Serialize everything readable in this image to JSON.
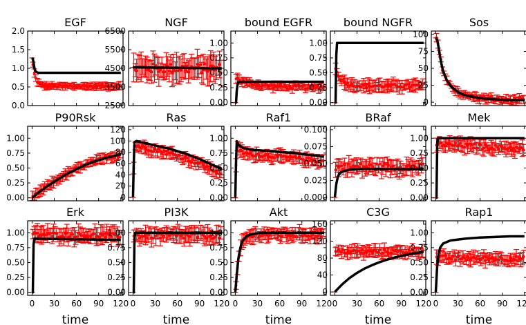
{
  "figure": {
    "description_free": true,
    "rows": 3,
    "cols": 5,
    "x_axis_label": "time",
    "x_ticks": [
      0,
      30,
      60,
      90,
      120
    ],
    "xlim": [
      -6,
      123
    ],
    "colors": {
      "data": "#ff0000",
      "fit": "#000000"
    }
  },
  "chart_data": [
    {
      "type": "line",
      "title": "EGF",
      "ylim": [
        0,
        2.0
      ],
      "yticks": [
        "0.0",
        "0.5",
        "1.0",
        "1.5",
        "2.0"
      ],
      "ytick_values": [
        0,
        0.5,
        1.0,
        1.5,
        2.0
      ],
      "fit_x": [
        0,
        1,
        2,
        3,
        4,
        6,
        8,
        10,
        120
      ],
      "fit_y": [
        1.28,
        1.25,
        1.15,
        1.02,
        0.94,
        0.9,
        0.88,
        0.88,
        0.88
      ],
      "data_shape": "decay",
      "data_start": 1.25,
      "data_end": 0.52,
      "data_tau": 4,
      "data_err": 0.08,
      "data_noise": 0.03
    },
    {
      "type": "line",
      "title": "NGF",
      "ylim": [
        2500,
        6500
      ],
      "yticks": [
        "2500",
        "3500",
        "4500",
        "5500",
        "6500"
      ],
      "ytick_values": [
        2500,
        3500,
        4500,
        5500,
        6500
      ],
      "fit_x": [
        0,
        120
      ],
      "fit_y": [
        4550,
        4500
      ],
      "data_shape": "flat",
      "data_start": 4500,
      "data_end": 4500,
      "data_err": 600,
      "data_noise": 250
    },
    {
      "type": "line",
      "title": "bound EGFR",
      "ylim": [
        -0.05,
        1.2
      ],
      "yticks": [
        "0.00",
        "0.25",
        "0.50",
        "0.75",
        "1.00"
      ],
      "ytick_values": [
        0,
        0.25,
        0.5,
        0.75,
        1.0
      ],
      "fit_x": [
        0,
        1,
        2,
        3,
        4,
        6,
        8,
        120
      ],
      "fit_y": [
        0,
        0,
        0.2,
        0.3,
        0.34,
        0.35,
        0.35,
        0.35
      ],
      "data_shape": "rise_decay",
      "data_peak": 0.42,
      "data_end": 0.26,
      "data_tau": 20,
      "data_err": 0.06,
      "data_noise": 0.03
    },
    {
      "type": "line",
      "title": "bound NGFR",
      "ylim": [
        -0.05,
        1.2
      ],
      "yticks": [
        "0.00",
        "0.25",
        "0.50",
        "0.75",
        "1.00"
      ],
      "ytick_values": [
        0,
        0.25,
        0.5,
        0.75,
        1.0
      ],
      "fit_x": [
        0,
        1,
        2,
        3,
        120
      ],
      "fit_y": [
        0,
        0,
        0.8,
        1.0,
        1.0
      ],
      "data_shape": "rise_decay",
      "data_peak": 0.6,
      "data_end": 0.28,
      "data_tau": 8,
      "data_err": 0.09,
      "data_noise": 0.03
    },
    {
      "type": "line",
      "title": "Sos",
      "ylim": [
        -5,
        105
      ],
      "yticks": [
        "0",
        "25",
        "50",
        "75",
        "100"
      ],
      "ytick_values": [
        0,
        25,
        50,
        75,
        100
      ],
      "fit_x": [
        0,
        2,
        4,
        6,
        8,
        10,
        15,
        20,
        30,
        40,
        60,
        80,
        100,
        120
      ],
      "fit_y": [
        95,
        92,
        80,
        66,
        55,
        46,
        32,
        24,
        15,
        10,
        6,
        4,
        3,
        3
      ],
      "data_shape": "follow",
      "data_err": 5,
      "data_noise": 3
    },
    {
      "type": "line",
      "title": "P90Rsk",
      "ylim": [
        -0.05,
        1.2
      ],
      "yticks": [
        "0.00",
        "0.25",
        "0.50",
        "0.75",
        "1.00"
      ],
      "ytick_values": [
        0,
        0.25,
        0.5,
        0.75,
        1.0
      ],
      "fit_x": [
        0,
        10,
        20,
        30,
        40,
        50,
        60,
        70,
        80,
        90,
        100,
        110,
        120
      ],
      "fit_y": [
        0,
        0.1,
        0.19,
        0.27,
        0.35,
        0.42,
        0.48,
        0.54,
        0.59,
        0.63,
        0.67,
        0.7,
        0.73
      ],
      "data_shape": "follow",
      "data_err": 0.07,
      "data_noise": 0.03
    },
    {
      "type": "line",
      "title": "Ras",
      "ylim": [
        -6,
        126
      ],
      "yticks": [
        "0",
        "20",
        "40",
        "60",
        "80",
        "100",
        "120"
      ],
      "ytick_values": [
        0,
        20,
        40,
        60,
        80,
        100,
        120
      ],
      "fit_x": [
        0,
        1,
        2,
        5,
        10,
        20,
        30,
        40,
        50,
        60,
        70,
        80,
        90,
        100,
        110,
        120
      ],
      "fit_y": [
        0,
        60,
        98,
        100,
        98,
        95,
        92,
        89,
        86,
        82,
        78,
        73,
        68,
        62,
        56,
        50
      ],
      "data_shape": "follow_offset",
      "data_offset": -8,
      "data_err": 9,
      "data_noise": 4
    },
    {
      "type": "line",
      "title": "Raf1",
      "ylim": [
        -0.05,
        1.2
      ],
      "yticks": [
        "0.00",
        "0.25",
        "0.50",
        "0.75",
        "1.00"
      ],
      "ytick_values": [
        0,
        0.25,
        0.5,
        0.75,
        1.0
      ],
      "fit_x": [
        0,
        1,
        2,
        5,
        10,
        20,
        40,
        60,
        80,
        100,
        120
      ],
      "fit_y": [
        0,
        0.6,
        0.95,
        0.88,
        0.84,
        0.81,
        0.79,
        0.77,
        0.75,
        0.72,
        0.69
      ],
      "data_shape": "follow_offset",
      "data_offset": -0.08,
      "data_err": 0.09,
      "data_noise": 0.03
    },
    {
      "type": "line",
      "title": "BRaf",
      "ylim": [
        -0.005,
        0.105
      ],
      "yticks": [
        "0.000",
        "0.025",
        "0.050",
        "0.075",
        "0.100"
      ],
      "ytick_values": [
        0,
        0.025,
        0.05,
        0.075,
        0.1
      ],
      "fit_x": [
        0,
        2,
        4,
        6,
        10,
        20,
        40,
        80,
        120
      ],
      "fit_y": [
        0,
        0.02,
        0.03,
        0.035,
        0.038,
        0.041,
        0.042,
        0.042,
        0.042
      ],
      "data_shape": "flat",
      "data_start": 0.045,
      "data_end": 0.045,
      "data_err": 0.01,
      "data_noise": 0.005
    },
    {
      "type": "line",
      "title": "Mek",
      "ylim": [
        -0.05,
        1.2
      ],
      "yticks": [
        "0.00",
        "0.25",
        "0.50",
        "0.75",
        "1.00"
      ],
      "ytick_values": [
        0,
        0.25,
        0.5,
        0.75,
        1.0
      ],
      "fit_x": [
        0,
        1,
        2,
        3,
        120
      ],
      "fit_y": [
        0,
        0,
        0.9,
        1.0,
        1.0
      ],
      "data_shape": "flat",
      "data_start": 0.9,
      "data_end": 0.82,
      "data_err": 0.1,
      "data_noise": 0.04
    },
    {
      "type": "line",
      "title": "Erk",
      "ylim": [
        -0.05,
        1.2
      ],
      "yticks": [
        "0.00",
        "0.25",
        "0.50",
        "0.75",
        "1.00"
      ],
      "ytick_values": [
        0,
        0.25,
        0.5,
        0.75,
        1.0
      ],
      "fit_x": [
        0,
        1,
        2,
        3,
        120
      ],
      "fit_y": [
        0,
        0,
        0.8,
        0.9,
        0.88
      ],
      "data_shape": "flat",
      "data_start": 0.97,
      "data_end": 0.95,
      "data_err": 0.12,
      "data_noise": 0.04
    },
    {
      "type": "line",
      "title": "PI3K",
      "ylim": [
        -0.05,
        1.2
      ],
      "yticks": [
        "0.00",
        "0.25",
        "0.50",
        "0.75",
        "1.00"
      ],
      "ytick_values": [
        0,
        0.25,
        0.5,
        0.75,
        1.0
      ],
      "fit_x": [
        0,
        1,
        2,
        3,
        120
      ],
      "fit_y": [
        0,
        0,
        0.9,
        1.0,
        1.0
      ],
      "data_shape": "flat",
      "data_start": 0.95,
      "data_end": 0.95,
      "data_err": 0.12,
      "data_noise": 0.05
    },
    {
      "type": "line",
      "title": "Akt",
      "ylim": [
        -0.05,
        1.2
      ],
      "yticks": [
        "0.00",
        "0.25",
        "0.50",
        "0.75",
        "1.00"
      ],
      "ytick_values": [
        0,
        0.25,
        0.5,
        0.75,
        1.0
      ],
      "fit_x": [
        0,
        2,
        4,
        6,
        8,
        10,
        15,
        20,
        30,
        40,
        60,
        120
      ],
      "fit_y": [
        0,
        0.3,
        0.55,
        0.7,
        0.8,
        0.87,
        0.94,
        0.97,
        0.99,
        1.0,
        1.0,
        1.0
      ],
      "data_shape": "follow_offset",
      "data_offset": -0.03,
      "data_err": 0.1,
      "data_noise": 0.04
    },
    {
      "type": "line",
      "title": "C3G",
      "ylim": [
        -8,
        168
      ],
      "yticks": [
        "0",
        "40",
        "80",
        "120",
        "160"
      ],
      "ytick_values": [
        0,
        40,
        80,
        120,
        160
      ],
      "fit_x": [
        0,
        10,
        20,
        30,
        40,
        50,
        60,
        70,
        80,
        90,
        100,
        110,
        120
      ],
      "fit_y": [
        0,
        18,
        33,
        45,
        55,
        63,
        70,
        76,
        81,
        85,
        89,
        92,
        95
      ],
      "data_shape": "flat",
      "data_start": 95,
      "data_end": 95,
      "data_err": 12,
      "data_noise": 5
    },
    {
      "type": "line",
      "title": "Rap1",
      "ylim": [
        -0.05,
        1.2
      ],
      "yticks": [
        "0.00",
        "0.25",
        "0.50",
        "0.75",
        "1.00"
      ],
      "ytick_values": [
        0,
        0.25,
        0.5,
        0.75,
        1.0
      ],
      "fit_x": [
        0,
        2,
        4,
        6,
        10,
        20,
        40,
        60,
        80,
        100,
        120
      ],
      "fit_y": [
        0,
        0.45,
        0.65,
        0.75,
        0.82,
        0.87,
        0.9,
        0.92,
        0.93,
        0.94,
        0.94
      ],
      "data_shape": "flat",
      "data_start": 0.58,
      "data_end": 0.56,
      "data_err": 0.09,
      "data_noise": 0.04
    }
  ]
}
